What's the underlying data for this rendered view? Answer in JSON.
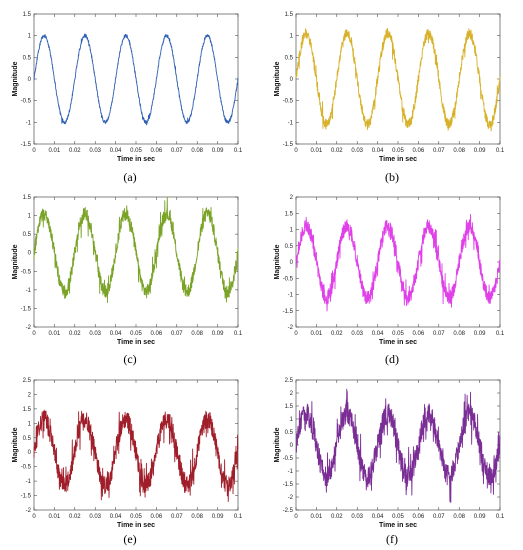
{
  "figure": {
    "panels": [
      {
        "caption": "(a)",
        "color": "#2f5fb3",
        "ylim": [
          -1.5,
          1.5
        ],
        "yticks": [
          "-1.5",
          "-1",
          "-0.5",
          "0",
          "0.5",
          "1",
          "1.5"
        ],
        "amplitude": 1.0,
        "noise": 0.04
      },
      {
        "caption": "(b)",
        "color": "#d8b12a",
        "ylim": [
          -1.5,
          1.5
        ],
        "yticks": [
          "-1.5",
          "-1",
          "-0.5",
          "0",
          "0.5",
          "1",
          "1.5"
        ],
        "amplitude": 1.05,
        "noise": 0.12
      },
      {
        "caption": "(c)",
        "color": "#7aa328",
        "ylim": [
          -2,
          1.5
        ],
        "yticks": [
          "-2",
          "-1.5",
          "-1",
          "-0.5",
          "0",
          "0.5",
          "1",
          "1.5"
        ],
        "amplitude": 1.05,
        "noise": 0.18
      },
      {
        "caption": "(d)",
        "color": "#e040e8",
        "ylim": [
          -2,
          2
        ],
        "yticks": [
          "-2",
          "-1.5",
          "-1",
          "-0.5",
          "0",
          "0.5",
          "1",
          "1.5",
          "2"
        ],
        "amplitude": 1.1,
        "noise": 0.22
      },
      {
        "caption": "(e)",
        "color": "#a01e2a",
        "ylim": [
          -2,
          2.5
        ],
        "yticks": [
          "-2",
          "-1.5",
          "-1",
          "-0.5",
          "0",
          "0.5",
          "1",
          "1.5",
          "2",
          "2.5"
        ],
        "amplitude": 1.15,
        "noise": 0.32
      },
      {
        "caption": "(f)",
        "color": "#7a2e95",
        "ylim": [
          -2.5,
          2.5
        ],
        "yticks": [
          "-2.5",
          "-2",
          "-1.5",
          "-1",
          "-0.5",
          "0",
          "0.5",
          "1",
          "1.5",
          "2",
          "2.5"
        ],
        "amplitude": 1.2,
        "noise": 0.4
      }
    ],
    "xticks": [
      "0",
      "0.01",
      "0.02",
      "0.03",
      "0.04",
      "0.05",
      "0.06",
      "0.07",
      "0.08",
      "0.09",
      "0.1"
    ],
    "xlabel": "Time in sec",
    "ylabel": "Magnitude"
  },
  "chart_data": [
    {
      "type": "line",
      "xlabel": "Time in sec",
      "ylabel": "Magnitude",
      "xlim": [
        0,
        0.1
      ],
      "ylim": [
        -1.5,
        1.5
      ],
      "series": [
        {
          "color": "#2f5fb3",
          "x": [
            0,
            0.005,
            0.01,
            0.015,
            0.02,
            0.025,
            0.03,
            0.035,
            0.04,
            0.045,
            0.05,
            0.055,
            0.06,
            0.065,
            0.07,
            0.075,
            0.08,
            0.085,
            0.09,
            0.095,
            0.1
          ],
          "y": [
            0,
            1,
            0,
            -1,
            0,
            1,
            0,
            -1,
            0,
            1,
            0,
            -1,
            0,
            1,
            0,
            -1,
            0,
            1,
            0,
            -1,
            0
          ]
        }
      ]
    },
    {
      "type": "line",
      "xlabel": "Time in sec",
      "ylabel": "Magnitude",
      "xlim": [
        0,
        0.1
      ],
      "ylim": [
        -1.5,
        1.5
      ],
      "series": [
        {
          "color": "#d8b12a",
          "x": [
            0,
            0.005,
            0.01,
            0.015,
            0.02,
            0.025,
            0.03,
            0.035,
            0.04,
            0.045,
            0.05,
            0.055,
            0.06,
            0.065,
            0.07,
            0.075,
            0.08,
            0.085,
            0.09,
            0.095,
            0.1
          ],
          "y": [
            0,
            1.05,
            0,
            -1.05,
            0,
            1.05,
            0,
            -1.05,
            0,
            1.05,
            0,
            -1.05,
            0,
            1.05,
            0,
            -1.05,
            0,
            1.05,
            0,
            -1.05,
            0
          ]
        }
      ]
    },
    {
      "type": "line",
      "xlabel": "Time in sec",
      "ylabel": "Magnitude",
      "xlim": [
        0,
        0.1
      ],
      "ylim": [
        -2,
        1.5
      ],
      "series": [
        {
          "color": "#7aa328",
          "x": [
            0,
            0.005,
            0.01,
            0.015,
            0.02,
            0.025,
            0.03,
            0.035,
            0.04,
            0.045,
            0.05,
            0.055,
            0.06,
            0.065,
            0.07,
            0.075,
            0.08,
            0.085,
            0.09,
            0.095,
            0.1
          ],
          "y": [
            0,
            1.05,
            0,
            -1.05,
            0,
            1.05,
            0,
            -1.05,
            0,
            1.05,
            0,
            -1.05,
            0,
            1.05,
            0,
            -1.05,
            0,
            1.05,
            0,
            -1.05,
            0
          ]
        }
      ]
    },
    {
      "type": "line",
      "xlabel": "Time in sec",
      "ylabel": "Magnitude",
      "xlim": [
        0,
        0.1
      ],
      "ylim": [
        -2,
        2
      ],
      "series": [
        {
          "color": "#e040e8",
          "x": [
            0,
            0.005,
            0.01,
            0.015,
            0.02,
            0.025,
            0.03,
            0.035,
            0.04,
            0.045,
            0.05,
            0.055,
            0.06,
            0.065,
            0.07,
            0.075,
            0.08,
            0.085,
            0.09,
            0.095,
            0.1
          ],
          "y": [
            0,
            1.1,
            0,
            -1.1,
            0,
            1.1,
            0,
            -1.1,
            0,
            1.1,
            0,
            -1.1,
            0,
            1.1,
            0,
            -1.1,
            0,
            1.1,
            0,
            -1.1,
            0
          ]
        }
      ]
    },
    {
      "type": "line",
      "xlabel": "Time in sec",
      "ylabel": "Magnitude",
      "xlim": [
        0,
        0.1
      ],
      "ylim": [
        -2,
        2.5
      ],
      "series": [
        {
          "color": "#a01e2a",
          "x": [
            0,
            0.005,
            0.01,
            0.015,
            0.02,
            0.025,
            0.03,
            0.035,
            0.04,
            0.045,
            0.05,
            0.055,
            0.06,
            0.065,
            0.07,
            0.075,
            0.08,
            0.085,
            0.09,
            0.095,
            0.1
          ],
          "y": [
            0,
            1.15,
            0,
            -1.15,
            0,
            1.15,
            0,
            -1.15,
            0,
            1.15,
            0,
            -1.15,
            0,
            1.15,
            0,
            -1.15,
            0,
            1.15,
            0,
            -1.15,
            0
          ]
        }
      ]
    },
    {
      "type": "line",
      "xlabel": "Time in sec",
      "ylabel": "Magnitude",
      "xlim": [
        0,
        0.1
      ],
      "ylim": [
        -2.5,
        2.5
      ],
      "series": [
        {
          "color": "#7a2e95",
          "x": [
            0,
            0.005,
            0.01,
            0.015,
            0.02,
            0.025,
            0.03,
            0.035,
            0.04,
            0.045,
            0.05,
            0.055,
            0.06,
            0.065,
            0.07,
            0.075,
            0.08,
            0.085,
            0.09,
            0.095,
            0.1
          ],
          "y": [
            0,
            1.2,
            0,
            -1.2,
            0,
            1.2,
            0,
            -1.2,
            0,
            1.2,
            0,
            -1.2,
            0,
            1.2,
            0,
            -1.2,
            0,
            1.2,
            0,
            -1.2,
            0
          ]
        }
      ]
    }
  ]
}
